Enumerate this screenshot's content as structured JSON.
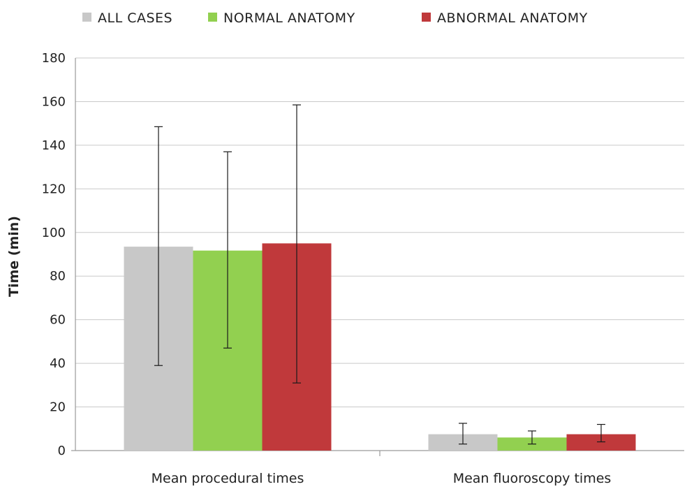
{
  "chart_data": {
    "type": "bar",
    "title": "",
    "xlabel": "",
    "ylabel": "Time (min)",
    "ylim": [
      0,
      180
    ],
    "yticks": [
      0,
      20,
      40,
      60,
      80,
      100,
      120,
      140,
      160,
      180
    ],
    "grid": true,
    "legend_position": "top",
    "categories": [
      "Mean procedural  times",
      "Mean fluoroscopy times"
    ],
    "series": [
      {
        "name": "ALL CASES",
        "color": "#c8c8c8",
        "values": [
          93.5,
          7.5
        ],
        "error_low": [
          39,
          3
        ],
        "error_high": [
          148.5,
          12.5
        ]
      },
      {
        "name": "NORMAL ANATOMY",
        "color": "#92d050",
        "values": [
          91.7,
          6
        ],
        "error_low": [
          47,
          3
        ],
        "error_high": [
          137,
          9
        ]
      },
      {
        "name": "ABNORMAL ANATOMY",
        "color": "#c0393b",
        "values": [
          95,
          7.5
        ],
        "error_low": [
          31,
          4
        ],
        "error_high": [
          158.5,
          12
        ]
      }
    ]
  }
}
